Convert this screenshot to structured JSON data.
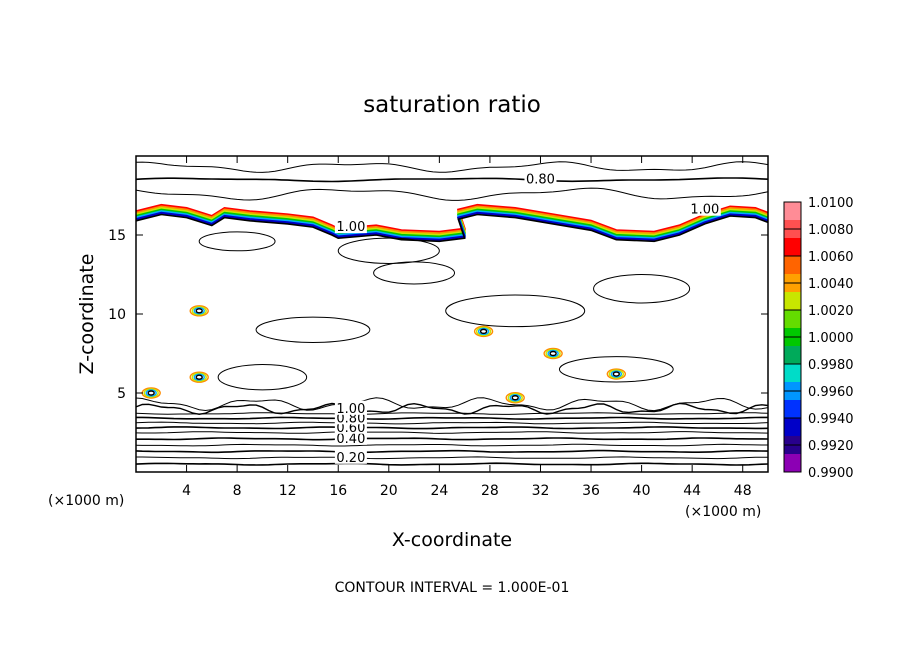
{
  "chart_data": {
    "type": "contour",
    "title": "saturation ratio",
    "xlabel": "X-coordinate",
    "ylabel": "Z-coordinate",
    "x_unit": "(×1000 m)",
    "y_unit": "(×1000 m)",
    "xlim": [
      0,
      50
    ],
    "ylim": [
      0,
      20
    ],
    "x_ticks": [
      4,
      8,
      12,
      16,
      20,
      24,
      28,
      32,
      36,
      40,
      44,
      48
    ],
    "y_ticks": [
      5,
      10,
      15
    ],
    "footer": "CONTOUR INTERVAL = 1.000E-01",
    "contour_interval": 0.1,
    "contour_labels": [
      {
        "text": "0.80",
        "x": 32,
        "z": 18.5
      },
      {
        "text": "1.00",
        "x": 17,
        "z": 15.5
      },
      {
        "text": "1.00",
        "x": 45,
        "z": 16.6
      },
      {
        "text": "0.20",
        "x": 17,
        "z": 0.9
      },
      {
        "text": "0.40",
        "x": 17,
        "z": 2.1
      },
      {
        "text": "0.60",
        "x": 17,
        "z": 2.8
      },
      {
        "text": "0.80",
        "x": 17,
        "z": 3.4
      },
      {
        "text": "1.00",
        "x": 17,
        "z": 4.0
      }
    ],
    "colorbar": {
      "levels": [
        "1.0100",
        "1.0080",
        "1.0060",
        "1.0040",
        "1.0020",
        "1.0000",
        "0.9980",
        "0.9960",
        "0.9940",
        "0.9920",
        "0.9900"
      ],
      "colors": [
        "#ff8c96",
        "#ff5050",
        "#ff0000",
        "#ff6400",
        "#ffa000",
        "#c8e600",
        "#64dc00",
        "#00c800",
        "#00aa5a",
        "#00dcc8",
        "#0096ff",
        "#0032ff",
        "#0000c8",
        "#28008c",
        "#8c00b4"
      ]
    }
  }
}
